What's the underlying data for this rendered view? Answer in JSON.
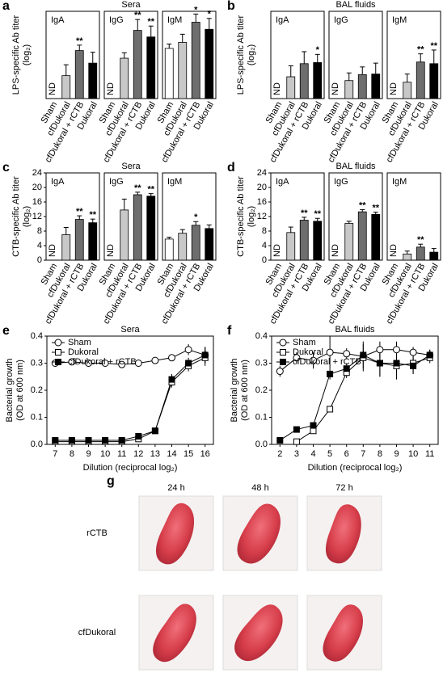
{
  "chart_data": [
    {
      "type": "bar",
      "panel": "a",
      "title": "Sera",
      "ylabel": "LPS-specific Ab titer",
      "ylabel_unit": "(log₂)",
      "categories": [
        "Sham",
        "cfDukoral",
        "cfDukoral + rCTB",
        "Dukoral"
      ],
      "colors": [
        "#ffffff",
        "#c8c8c8",
        "#6e6e6e",
        "#000000"
      ],
      "ylim": [
        0,
        16
      ],
      "subplots": [
        {
          "name": "IgA",
          "values": [
            null,
            4.2,
            8.8,
            6.5
          ],
          "errors": [
            null,
            2,
            1,
            2
          ],
          "value_labels": [
            "ND",
            null,
            null,
            null
          ],
          "significance": [
            null,
            null,
            "**",
            null
          ]
        },
        {
          "name": "IgG",
          "values": [
            null,
            7.4,
            12.5,
            11.3
          ],
          "errors": [
            null,
            1,
            2,
            2
          ],
          "value_labels": [
            "ND",
            null,
            null,
            null
          ],
          "significance": [
            null,
            null,
            "**",
            "**"
          ]
        },
        {
          "name": "IgM",
          "values": [
            9.2,
            10.3,
            14,
            12.7
          ],
          "errors": [
            0.8,
            1.5,
            1.5,
            2
          ],
          "value_labels": [
            null,
            null,
            null,
            null
          ],
          "significance": [
            null,
            null,
            "*",
            "*"
          ]
        }
      ]
    },
    {
      "type": "bar",
      "panel": "b",
      "title": "BAL fluids",
      "ylabel": "LPS-specific Ab titer",
      "ylabel_unit": "(log₂)",
      "categories": [
        "Sham",
        "cfDukoral",
        "cfDukoral + rCTB",
        "Dukoral"
      ],
      "colors": [
        "#ffffff",
        "#c8c8c8",
        "#6e6e6e",
        "#000000"
      ],
      "ylim": [
        0,
        16
      ],
      "subplots": [
        {
          "name": "IgA",
          "values": [
            null,
            4,
            6.4,
            6.6
          ],
          "errors": [
            null,
            2,
            2.2,
            1.5
          ],
          "value_labels": [
            "ND",
            null,
            null,
            null
          ],
          "significance": [
            null,
            null,
            null,
            "*"
          ]
        },
        {
          "name": "IgG",
          "values": [
            null,
            3.3,
            4.4,
            4.5
          ],
          "errors": [
            null,
            1.4,
            1.4,
            2
          ],
          "value_labels": [
            "ND",
            null,
            null,
            null
          ],
          "significance": [
            null,
            null,
            null,
            null
          ]
        },
        {
          "name": "IgM",
          "values": [
            null,
            3,
            6.7,
            6.4
          ],
          "errors": [
            null,
            1.5,
            1.5,
            2.5
          ],
          "value_labels": [
            "ND",
            null,
            null,
            null
          ],
          "significance": [
            null,
            null,
            "**",
            "**"
          ]
        }
      ]
    },
    {
      "type": "bar",
      "panel": "c",
      "title": "Sera",
      "ylabel": "CTB-specific Ab titer",
      "ylabel_unit": "(log₂)",
      "categories": [
        "Sham",
        "cfDukoral",
        "cfDukoral + rCTB",
        "Dukoral"
      ],
      "colors": [
        "#ffffff",
        "#c8c8c8",
        "#6e6e6e",
        "#000000"
      ],
      "ylim": [
        0,
        24
      ],
      "yticks": [
        0,
        4,
        8,
        12,
        16,
        20,
        24
      ],
      "subplots": [
        {
          "name": "IgA",
          "values": [
            null,
            7,
            11.2,
            10.3
          ],
          "errors": [
            null,
            2,
            1,
            1
          ],
          "value_labels": [
            "ND",
            null,
            null,
            null
          ],
          "significance": [
            null,
            null,
            "**",
            "**"
          ]
        },
        {
          "name": "IgG",
          "values": [
            null,
            13.8,
            18,
            17.6
          ],
          "errors": [
            null,
            3,
            0.7,
            0.7
          ],
          "value_labels": [
            "ND",
            null,
            null,
            null
          ],
          "significance": [
            null,
            null,
            "**",
            "**"
          ]
        },
        {
          "name": "IgM",
          "values": [
            5.8,
            7.4,
            9.6,
            8.7
          ],
          "errors": [
            0.5,
            1,
            1,
            1
          ],
          "value_labels": [
            null,
            null,
            null,
            null
          ],
          "significance": [
            null,
            null,
            "*",
            null
          ]
        }
      ]
    },
    {
      "type": "bar",
      "panel": "d",
      "title": "BAL fluids",
      "ylabel": "CTB-specific Ab titer",
      "ylabel_unit": "(log₂)",
      "categories": [
        "Sham",
        "cfDukoral",
        "cfDukoral + rCTB",
        "Dukoral"
      ],
      "colors": [
        "#ffffff",
        "#c8c8c8",
        "#6e6e6e",
        "#000000"
      ],
      "ylim": [
        0,
        24
      ],
      "yticks": [
        0,
        4,
        8,
        12,
        16,
        20,
        24
      ],
      "subplots": [
        {
          "name": "IgA",
          "values": [
            null,
            7.6,
            11,
            10.7
          ],
          "errors": [
            null,
            1.5,
            0.8,
            0.8
          ],
          "value_labels": [
            "ND",
            null,
            null,
            null
          ],
          "significance": [
            null,
            null,
            "**",
            "**"
          ]
        },
        {
          "name": "IgG",
          "values": [
            null,
            10.1,
            13.3,
            12.6
          ],
          "errors": [
            null,
            0.6,
            0.6,
            0.6
          ],
          "value_labels": [
            "ND",
            null,
            null,
            null
          ],
          "significance": [
            null,
            null,
            "**",
            "**"
          ]
        },
        {
          "name": "IgM",
          "values": [
            null,
            1.7,
            3.6,
            2.2
          ],
          "errors": [
            null,
            0.8,
            0.8,
            1
          ],
          "value_labels": [
            "ND",
            null,
            null,
            null
          ],
          "significance": [
            null,
            null,
            "**",
            null
          ]
        }
      ]
    },
    {
      "type": "line",
      "panel": "e",
      "title": "Sera",
      "xlabel": "Dilution (reciprocal log₂)",
      "ylabel": "Bacterial growth",
      "ylabel_unit": "(OD at 600 nm)",
      "x": [
        7,
        8,
        9,
        10,
        11,
        12,
        13,
        14,
        15,
        16
      ],
      "xlim": [
        6.5,
        16.5
      ],
      "xticks": [
        7,
        8,
        9,
        10,
        11,
        12,
        13,
        14,
        15,
        16
      ],
      "ylim": [
        0,
        0.4
      ],
      "yticks": [
        {
          "value": 0,
          "label": "0.0"
        },
        0.1,
        0.2,
        0.3,
        0.4
      ],
      "legend": "upper left",
      "series": [
        {
          "name": "Sham",
          "marker": "circle",
          "color": "#000000",
          "fill": "#ffffff",
          "values": [
            0.3,
            0.305,
            0.3,
            0.3,
            0.295,
            0.3,
            0.31,
            0.32,
            0.35,
            0.33
          ],
          "errors": [
            0.005,
            0.005,
            0.005,
            0.005,
            0.005,
            0.005,
            0.01,
            0.01,
            0.02,
            0.03
          ]
        },
        {
          "name": "Dukoral",
          "marker": "square",
          "color": "#000000",
          "fill": "#ffffff",
          "values": [
            0.01,
            0.01,
            0.01,
            0.01,
            0.01,
            0.02,
            0.05,
            0.23,
            0.29,
            0.32
          ],
          "errors": [
            0.002,
            0.002,
            0.002,
            0.002,
            0.002,
            0.005,
            0.005,
            0.02,
            0.02,
            0.03
          ]
        },
        {
          "name": "cfDukoral + rCTB",
          "marker": "square",
          "color": "#000000",
          "fill": "#000000",
          "values": [
            0.015,
            0.015,
            0.015,
            0.015,
            0.015,
            0.03,
            0.05,
            0.24,
            0.3,
            0.33
          ],
          "errors": [
            0.002,
            0.002,
            0.002,
            0.002,
            0.002,
            0.005,
            0.005,
            0.02,
            0.02,
            0.03
          ]
        }
      ]
    },
    {
      "type": "line",
      "panel": "f",
      "title": "BAL fluids",
      "xlabel": "Dilution (reciprocal log₂)",
      "ylabel": "Bacterial growth",
      "ylabel_unit": "(OD at 600 nm)",
      "x": [
        2,
        3,
        4,
        5,
        6,
        7,
        8,
        9,
        10,
        11
      ],
      "xlim": [
        1.5,
        11.5
      ],
      "xticks": [
        2,
        3,
        4,
        5,
        6,
        7,
        8,
        9,
        10,
        11
      ],
      "ylim": [
        0,
        0.4
      ],
      "yticks": [
        {
          "value": 0,
          "label": "0.0"
        },
        0.1,
        0.2,
        0.3,
        0.4
      ],
      "legend": "upper left",
      "series": [
        {
          "name": "Sham",
          "marker": "circle",
          "color": "#000000",
          "fill": "#ffffff",
          "values": [
            0.27,
            0.32,
            0.31,
            0.34,
            0.335,
            0.325,
            0.35,
            0.35,
            0.34,
            0.33
          ],
          "errors": [
            0.02,
            0.02,
            0.03,
            0.06,
            0.02,
            0.02,
            0.03,
            0.03,
            0.02,
            0.02
          ]
        },
        {
          "name": "Dukoral",
          "marker": "square",
          "color": "#000000",
          "fill": "#ffffff",
          "values": [
            null,
            0.01,
            0.05,
            0.13,
            0.265,
            0.32,
            0.3,
            0.29,
            0.3,
            0.32
          ],
          "errors": [
            null,
            0.005,
            0.005,
            0.01,
            0.02,
            0.05,
            0.05,
            0.05,
            0.04,
            0.02
          ]
        },
        {
          "name": "cfDukoral + rCTB",
          "marker": "square",
          "color": "#000000",
          "fill": "#000000",
          "values": [
            0.015,
            0.055,
            0.07,
            0.26,
            0.28,
            0.33,
            0.3,
            0.3,
            0.29,
            0.33
          ],
          "errors": [
            0.005,
            0.005,
            0.005,
            0.02,
            0.02,
            0.05,
            0.05,
            0.05,
            0.03,
            0.02
          ]
        }
      ]
    }
  ],
  "figure_g": {
    "panel": "g",
    "columns": [
      "24 h",
      "48 h",
      "72 h"
    ],
    "rows": [
      "rCTB",
      "cfDukoral"
    ]
  }
}
